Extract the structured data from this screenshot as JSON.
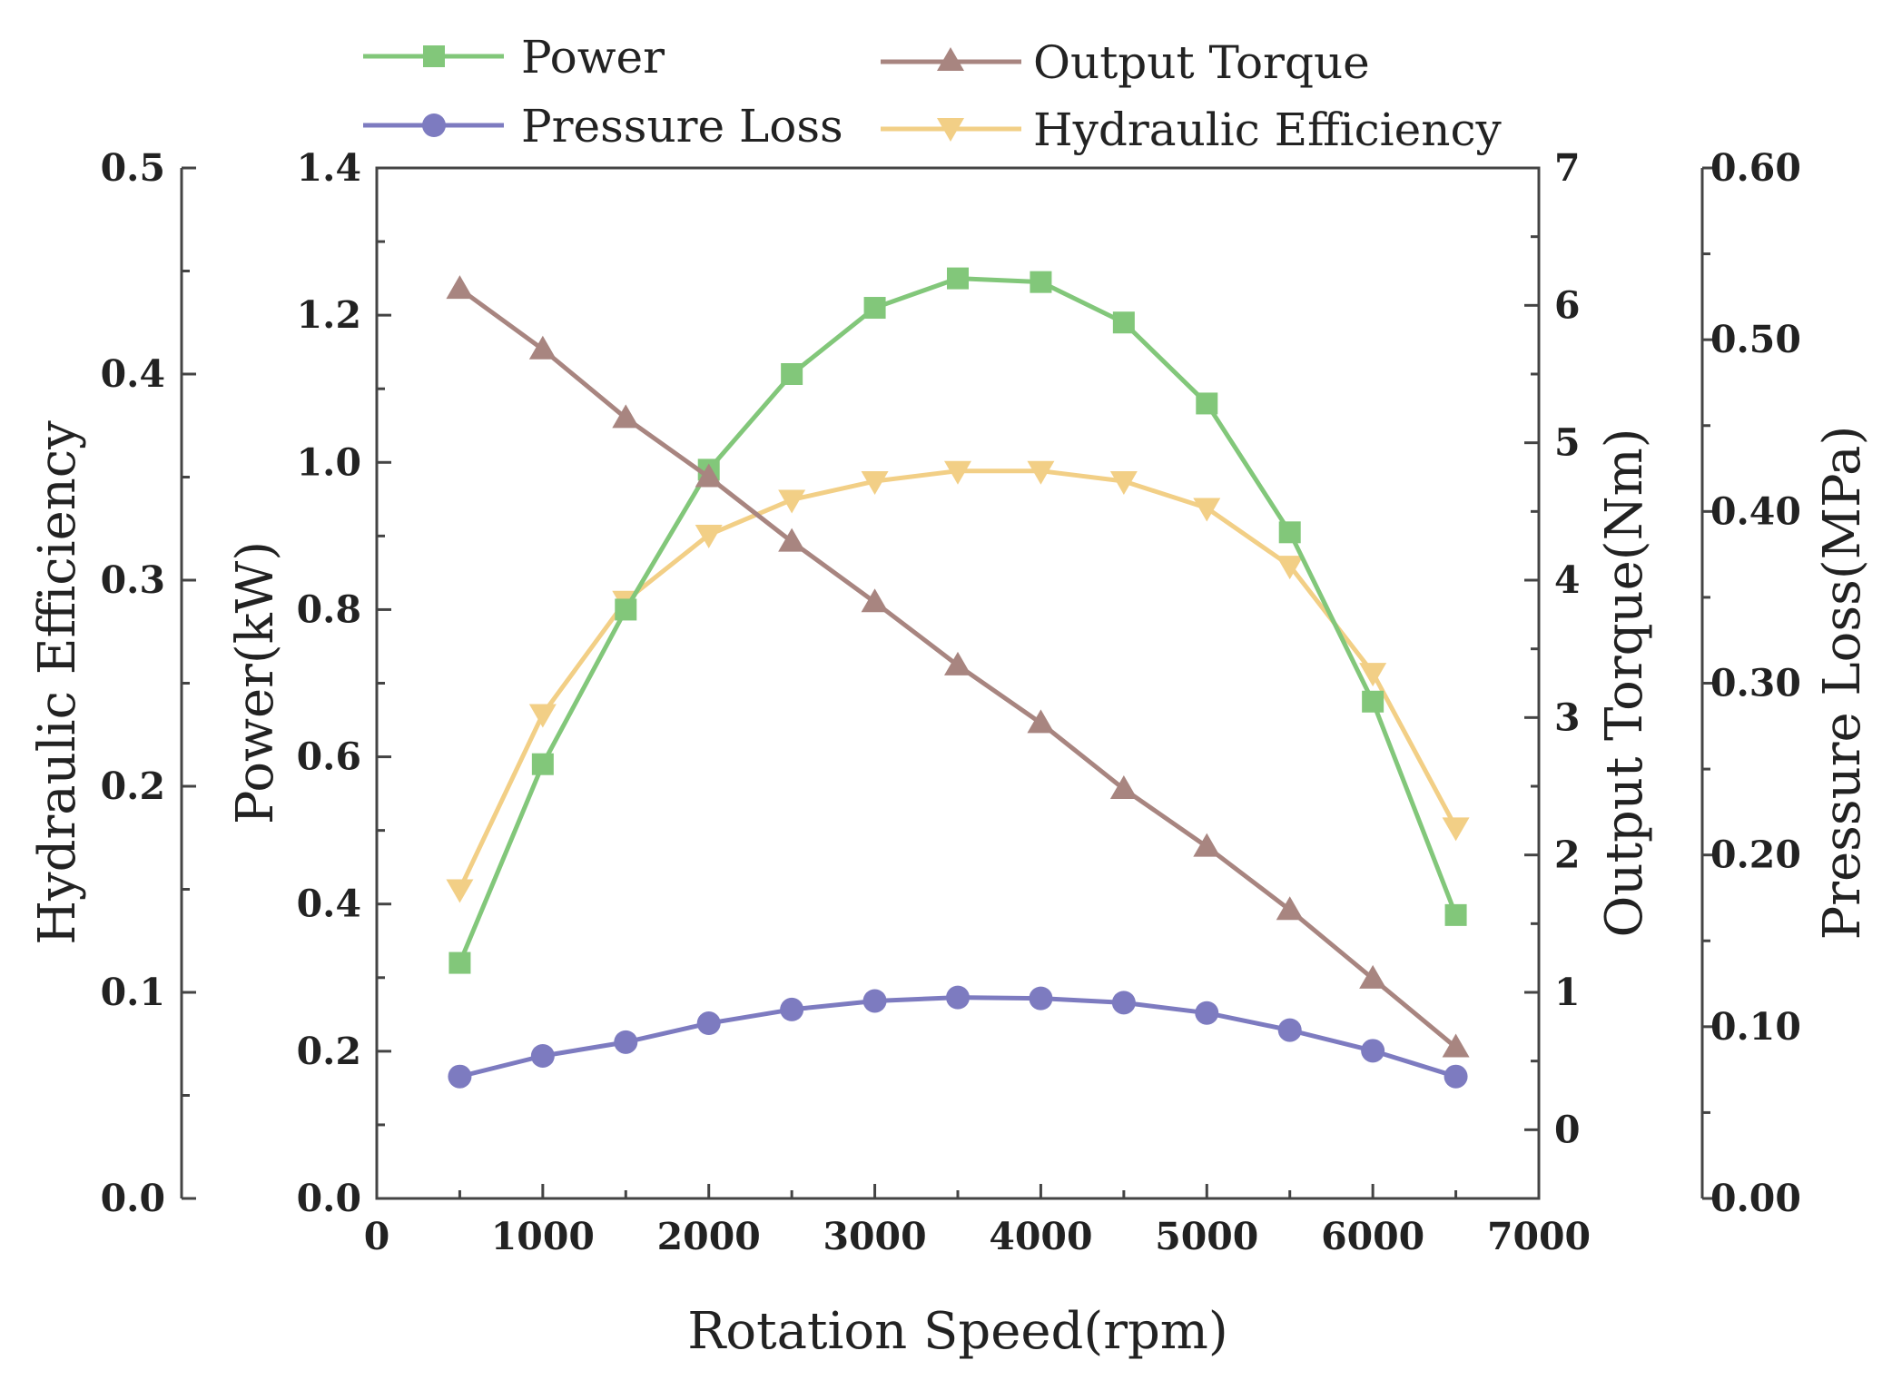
{
  "chart_data": {
    "type": "line",
    "title": "",
    "x": [
      500,
      1000,
      1500,
      2000,
      2500,
      3000,
      3500,
      4000,
      4500,
      5000,
      5500,
      6000,
      6500
    ],
    "xlabel": "Rotation Speed(rpm)",
    "xlim": [
      0,
      7000
    ],
    "xticks": [
      "0",
      "1000",
      "2000",
      "3000",
      "4000",
      "5000",
      "6000",
      "7000"
    ],
    "grid": false,
    "legend_position": "top",
    "axes": {
      "efficiency": {
        "label": "Hydraulic Efficiency",
        "range": [
          0.0,
          0.5
        ],
        "ticks": [
          "0.0",
          "0.1",
          "0.2",
          "0.3",
          "0.4",
          "0.5"
        ]
      },
      "power": {
        "label": "Power(kW)",
        "range": [
          0.0,
          1.4
        ],
        "ticks": [
          "0.0",
          "0.2",
          "0.4",
          "0.6",
          "0.8",
          "1.0",
          "1.2",
          "1.4"
        ]
      },
      "torque": {
        "label": "Output Torque(Nm)",
        "range": [
          -0.5,
          7
        ],
        "ticks": [
          "0",
          "1",
          "2",
          "3",
          "4",
          "5",
          "6",
          "7"
        ]
      },
      "pressure": {
        "label": "Pressure Loss(MPa)",
        "range": [
          0.0,
          0.6
        ],
        "ticks": [
          "0.00",
          "0.10",
          "0.20",
          "0.30",
          "0.40",
          "0.50",
          "0.60"
        ]
      }
    },
    "series": [
      {
        "name": "Power",
        "axis": "power",
        "color": "#82c77a",
        "marker": "square",
        "values": [
          0.32,
          0.59,
          0.8,
          0.99,
          1.12,
          1.21,
          1.25,
          1.245,
          1.19,
          1.08,
          0.905,
          0.675,
          0.385
        ]
      },
      {
        "name": "Output Torque",
        "axis": "torque",
        "color": "#a88580",
        "marker": "triangle-up",
        "values": [
          6.12,
          5.68,
          5.18,
          4.75,
          4.28,
          3.84,
          3.38,
          2.96,
          2.48,
          2.06,
          1.6,
          1.1,
          0.6
        ]
      },
      {
        "name": "Pressure Loss",
        "axis": "pressure",
        "color": "#7d7bc0",
        "marker": "circle",
        "values": [
          0.071,
          0.083,
          0.091,
          0.102,
          0.11,
          0.115,
          0.117,
          0.1165,
          0.114,
          0.108,
          0.098,
          0.086,
          0.071
        ]
      },
      {
        "name": "Hydraulic Efficiency",
        "axis": "efficiency",
        "color": "#f2cf86",
        "marker": "triangle-down",
        "values": [
          0.15,
          0.235,
          0.29,
          0.322,
          0.339,
          0.348,
          0.353,
          0.353,
          0.348,
          0.335,
          0.307,
          0.255,
          0.18
        ]
      }
    ]
  }
}
